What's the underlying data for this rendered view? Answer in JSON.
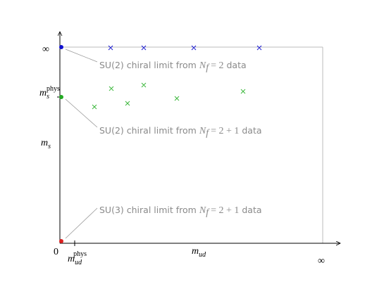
{
  "axes": {
    "y_top_label": "∞",
    "y_phys_label": {
      "base": "m",
      "sub": "s",
      "sup": "phys"
    },
    "y_label": {
      "base": "m",
      "sub": "s"
    },
    "origin_label": "0",
    "x_phys_label": {
      "base": "m",
      "sub": "ud",
      "sup": "phys"
    },
    "x_label": {
      "base": "m",
      "sub": "ud"
    },
    "x_right_label": "∞"
  },
  "annotations": [
    {
      "text": "SU(2) chiral limit from",
      "math": {
        "base": "N",
        "sub": "f",
        "rest": "= 2"
      },
      "suffix": "data"
    },
    {
      "text": "SU(2) chiral limit from",
      "math": {
        "base": "N",
        "sub": "f",
        "rest": "= 2 + 1"
      },
      "suffix": "data"
    },
    {
      "text": "SU(3) chiral limit from",
      "math": {
        "base": "N",
        "sub": "f",
        "rest": "= 2 + 1"
      },
      "suffix": "data"
    }
  ]
}
